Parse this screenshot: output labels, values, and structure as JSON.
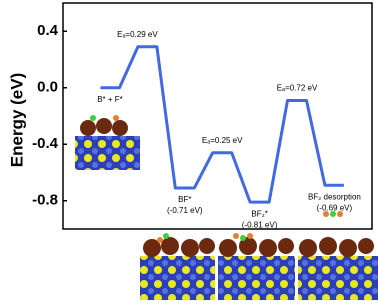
{
  "chart_data": {
    "type": "energy_profile",
    "y_label": "Energy (eV)",
    "categories": [
      [
        "B* + F*"
      ],
      [
        "Eₐ=0.29 eV"
      ],
      [
        "BF*",
        "(-0.71 eV)"
      ],
      [
        "Eₐ=0.25 eV"
      ],
      [
        "BF₂*",
        "(-0.81 eV)"
      ],
      [
        "Eₐ=0.72 eV"
      ],
      [
        "BF₂ desorption",
        "(-0.69 eV)"
      ]
    ],
    "values": [
      0.0,
      0.29,
      -0.71,
      -0.46,
      -0.81,
      -0.09,
      -0.69
    ],
    "color": "#4169e1",
    "ylim": [
      -1.0,
      0.6
    ],
    "yticks": [
      0.4,
      {
        "value": 0,
        "label": "0.0"
      },
      -0.4,
      -0.8
    ]
  }
}
